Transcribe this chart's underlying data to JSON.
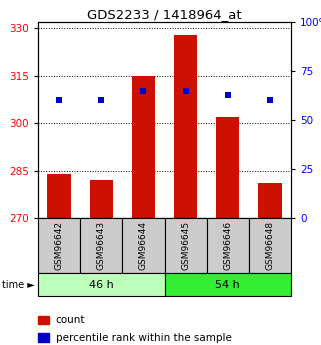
{
  "title": "GDS2233 / 1418964_at",
  "samples": [
    "GSM96642",
    "GSM96643",
    "GSM96644",
    "GSM96645",
    "GSM96646",
    "GSM96648"
  ],
  "count_values": [
    284,
    282,
    315,
    328,
    302,
    281
  ],
  "percentile_values": [
    60,
    60,
    65,
    65,
    63,
    60
  ],
  "left_ylim": [
    270,
    332
  ],
  "right_ylim": [
    0,
    100
  ],
  "left_yticks": [
    270,
    285,
    300,
    315,
    330
  ],
  "right_yticks": [
    0,
    25,
    50,
    75,
    100
  ],
  "right_yticklabels": [
    "0",
    "25",
    "50",
    "75",
    "100%"
  ],
  "groups": [
    {
      "label": "46 h",
      "indices": [
        0,
        1,
        2
      ],
      "color": "#bbffbb"
    },
    {
      "label": "54 h",
      "indices": [
        3,
        4,
        5
      ],
      "color": "#33ee33"
    }
  ],
  "bar_color": "#cc1100",
  "dot_color": "#0000cc",
  "bar_width": 0.55,
  "time_label": "time ►",
  "legend_count": "count",
  "legend_percentile": "percentile rank within the sample",
  "title_fontsize": 9.5,
  "tick_label_fontsize": 7.5,
  "sample_fontsize": 6.5,
  "group_fontsize": 8,
  "legend_fontsize": 7.5
}
